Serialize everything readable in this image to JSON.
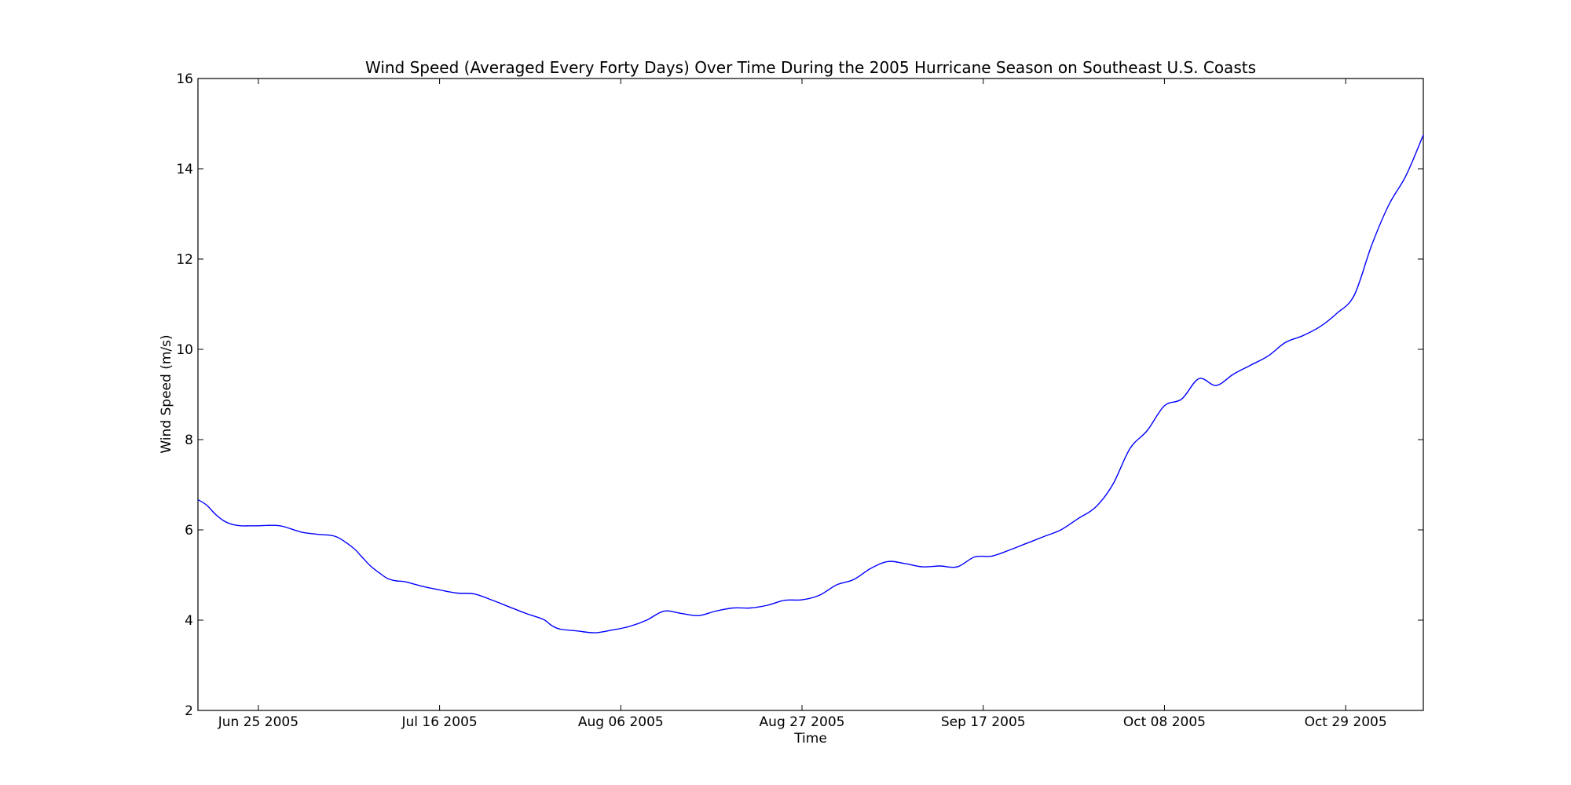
{
  "chart_data": {
    "type": "line",
    "title": "Wind Speed (Averaged Every Forty Days) Over Time During the 2005 Hurricane Season on Southeast U.S. Coasts",
    "xlabel": "Time",
    "ylabel": "Wind Speed (m/s)",
    "xlim": [
      "2005-06-18",
      "2005-11-07"
    ],
    "ylim": [
      2,
      16
    ],
    "grid": false,
    "line_color": "#0000ff",
    "x_ticks": [
      {
        "date": "2005-06-25",
        "label": "Jun 25 2005"
      },
      {
        "date": "2005-07-16",
        "label": "Jul 16 2005"
      },
      {
        "date": "2005-08-06",
        "label": "Aug 06 2005"
      },
      {
        "date": "2005-08-27",
        "label": "Aug 27 2005"
      },
      {
        "date": "2005-09-17",
        "label": "Sep 17 2005"
      },
      {
        "date": "2005-10-08",
        "label": "Oct 08 2005"
      },
      {
        "date": "2005-10-29",
        "label": "Oct 29 2005"
      }
    ],
    "y_ticks": [
      2,
      4,
      6,
      8,
      10,
      12,
      14,
      16
    ],
    "series": [
      {
        "x": [
          "2005-06-18",
          "2005-06-19",
          "2005-06-20",
          "2005-06-21",
          "2005-06-22",
          "2005-06-23",
          "2005-06-24",
          "2005-06-25",
          "2005-06-26",
          "2005-06-27",
          "2005-06-28",
          "2005-06-30",
          "2005-07-02",
          "2005-07-04",
          "2005-07-06",
          "2005-07-07",
          "2005-07-08",
          "2005-07-09",
          "2005-07-10",
          "2005-07-11",
          "2005-07-12",
          "2005-07-14",
          "2005-07-16",
          "2005-07-18",
          "2005-07-20",
          "2005-07-22",
          "2005-07-24",
          "2005-07-26",
          "2005-07-28",
          "2005-07-29",
          "2005-07-30",
          "2005-08-01",
          "2005-08-03",
          "2005-08-05",
          "2005-08-07",
          "2005-08-09",
          "2005-08-11",
          "2005-08-13",
          "2005-08-15",
          "2005-08-17",
          "2005-08-19",
          "2005-08-21",
          "2005-08-23",
          "2005-08-25",
          "2005-08-27",
          "2005-08-29",
          "2005-08-31",
          "2005-09-02",
          "2005-09-04",
          "2005-09-06",
          "2005-09-08",
          "2005-09-10",
          "2005-09-12",
          "2005-09-14",
          "2005-09-16",
          "2005-09-18",
          "2005-09-20",
          "2005-09-22",
          "2005-09-24",
          "2005-09-26",
          "2005-09-28",
          "2005-09-30",
          "2005-10-02",
          "2005-10-04",
          "2005-10-06",
          "2005-10-08",
          "2005-10-10",
          "2005-10-12",
          "2005-10-14",
          "2005-10-16",
          "2005-10-18",
          "2005-10-20",
          "2005-10-22",
          "2005-10-24",
          "2005-10-26",
          "2005-10-28",
          "2005-10-30",
          "2005-11-01",
          "2005-11-03",
          "2005-11-05",
          "2005-11-07"
        ],
        "y": [
          6.67,
          6.55,
          6.35,
          6.2,
          6.12,
          6.09,
          6.09,
          6.09,
          6.1,
          6.1,
          6.07,
          5.95,
          5.9,
          5.85,
          5.6,
          5.4,
          5.2,
          5.05,
          4.92,
          4.87,
          4.85,
          4.75,
          4.67,
          4.6,
          4.58,
          4.45,
          4.3,
          4.15,
          4.02,
          3.88,
          3.8,
          3.76,
          3.72,
          3.78,
          3.86,
          4.0,
          4.2,
          4.15,
          4.1,
          4.2,
          4.27,
          4.27,
          4.33,
          4.44,
          4.45,
          4.55,
          4.78,
          4.9,
          5.15,
          5.3,
          5.25,
          5.18,
          5.2,
          5.18,
          5.4,
          5.42,
          5.55,
          5.7,
          5.85,
          6.0,
          6.25,
          6.5,
          7.0,
          7.8,
          8.2,
          8.75,
          8.9,
          9.35,
          9.2,
          9.45,
          9.65,
          9.85,
          10.15,
          10.3,
          10.5,
          10.8,
          11.2,
          12.3,
          13.2,
          13.85,
          14.75
        ]
      }
    ]
  }
}
